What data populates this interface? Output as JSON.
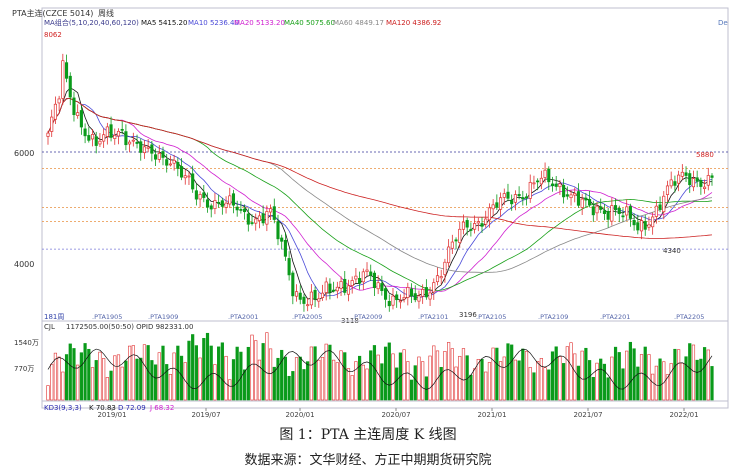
{
  "header": {
    "title": "PTA主连(CZCE 5014)",
    "period": "周线",
    "right_tag": "De"
  },
  "ma_legend": [
    {
      "label": "MA组合(5,10,20,40,60,120)",
      "color": "#3a3a8c"
    },
    {
      "label": "MA5 5415.20",
      "color": "#111111"
    },
    {
      "label": "MA10 5236.40",
      "color": "#4a4ad8"
    },
    {
      "label": "MA20 5133.20",
      "color": "#d020d0"
    },
    {
      "label": "MA40 5075.60",
      "color": "#18a018"
    },
    {
      "label": "MA60 4849.17",
      "color": "#888888"
    },
    {
      "label": "MA120 4386.92",
      "color": "#cc2020"
    }
  ],
  "volume_legend": {
    "label": "1172505.00(50:50)  OPID 982331.00"
  },
  "kdj_legend": [
    {
      "label": "KD3(9,3,3)",
      "color": "#2a2ab0"
    },
    {
      "label": "K 70.83",
      "color": "#111111"
    },
    {
      "label": "D 72.09",
      "color": "#2a2ab0"
    },
    {
      "label": "J 68.32",
      "color": "#d020d0"
    }
  ],
  "annotations": {
    "max_label": "8062",
    "low_2020": "3118",
    "low_2021": "3196",
    "recent_high": "5880",
    "recent_low": "4340",
    "bars_count": "181周"
  },
  "footer_dates": [
    "2019/01",
    "2019/07",
    "2020/01",
    "2020/07",
    "2021/01",
    "2021/07",
    "2022/01"
  ],
  "contract_labels": [
    "PTA1905",
    "PTA1909",
    "PTA2001",
    "PTA2005",
    "PTA2009",
    "PTA2101",
    "PTA2105",
    "PTA2109",
    "PTA2201",
    "PTA2205"
  ],
  "colors": {
    "up": "#e03030",
    "down": "#0a9a1a",
    "grid": "#d8d8e8"
  },
  "chart_data": {
    "type": "candlestick",
    "title": "PTA主连(CZCE 5014)",
    "period": "weekly",
    "y_ticks": [
      6000,
      4000
    ],
    "ylim": [
      3000,
      8300
    ],
    "reference_lines": [
      6000,
      5700,
      5000,
      4750,
      4250
    ],
    "close_path": [
      {
        "date": "2018-11",
        "close": 6300
      },
      {
        "date": "2018-12",
        "close": 5900
      },
      {
        "date": "2019-01",
        "close": 6100
      },
      {
        "date": "2019-03",
        "close": 6450
      },
      {
        "date": "2019-05",
        "close": 5900
      },
      {
        "date": "2019-07",
        "close": 5950
      },
      {
        "date": "2019-08",
        "close": 5150
      },
      {
        "date": "2019-10",
        "close": 5150
      },
      {
        "date": "2019-12",
        "close": 4800
      },
      {
        "date": "2020-01",
        "close": 4950
      },
      {
        "date": "2020-03",
        "close": 3500
      },
      {
        "date": "2020-04",
        "close": 3300
      },
      {
        "date": "2020-06",
        "close": 3700
      },
      {
        "date": "2020-08",
        "close": 3700
      },
      {
        "date": "2020-10",
        "close": 3400
      },
      {
        "date": "2020-11",
        "close": 3300
      },
      {
        "date": "2021-01",
        "close": 3900
      },
      {
        "date": "2021-03",
        "close": 4700
      },
      {
        "date": "2021-05",
        "close": 4900
      },
      {
        "date": "2021-07",
        "close": 5250
      },
      {
        "date": "2021-09",
        "close": 5450
      },
      {
        "date": "2021-10",
        "close": 5400
      },
      {
        "date": "2021-11",
        "close": 4900
      },
      {
        "date": "2021-12",
        "close": 5050
      },
      {
        "date": "2022-01",
        "close": 4550
      },
      {
        "date": "2022-02",
        "close": 5200
      },
      {
        "date": "2022-03",
        "close": 5600
      },
      {
        "date": "2022-03-end",
        "close": 5450
      }
    ],
    "extremes": {
      "high": 8062,
      "low": 3118
    },
    "ma_last": {
      "MA5": 5415.2,
      "MA10": 5236.4,
      "MA20": 5133.2,
      "MA40": 5075.6,
      "MA60": 4849.17,
      "MA120": 4386.92
    },
    "volume": {
      "y_ticks": [
        "1540万",
        "770万"
      ],
      "last": 1172505.0,
      "opid": 982331.0
    },
    "kdj": {
      "K": 70.83,
      "D": 72.09,
      "J": 68.32
    }
  },
  "caption": "图 1：PTA 主连周度 K 线图",
  "source": "数据来源：文华财经、方正中期期货研究院"
}
